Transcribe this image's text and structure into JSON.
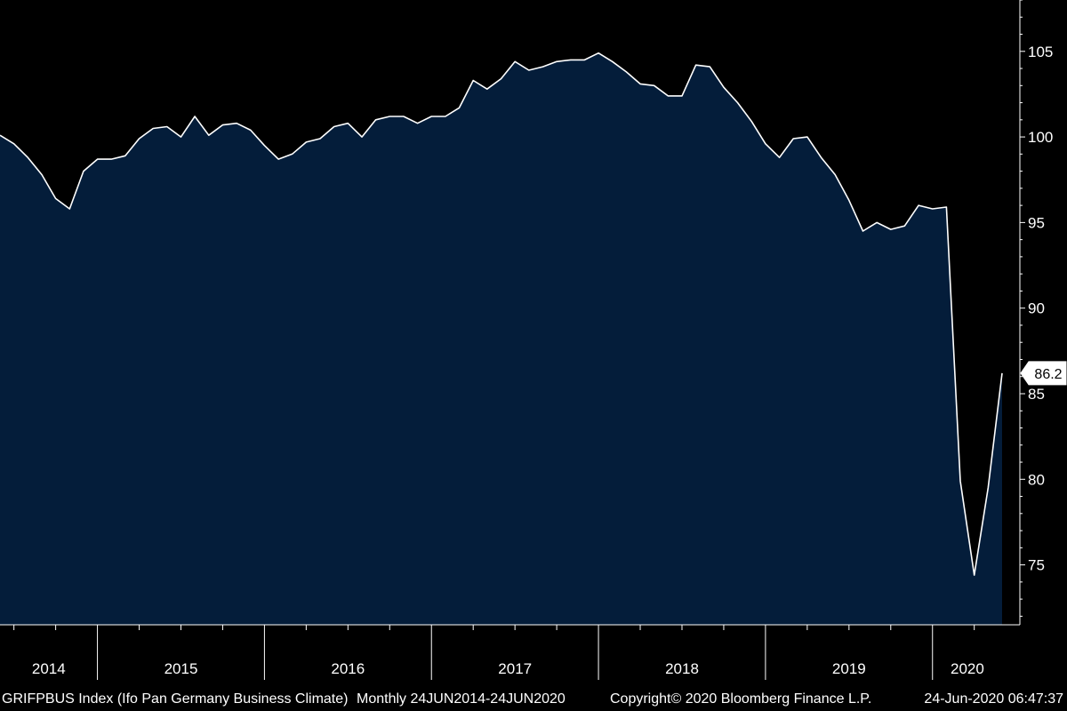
{
  "colors": {
    "background": "#000000",
    "area_fill": "#041d3a",
    "line": "#ffffff",
    "axis": "#ffffff"
  },
  "footer": {
    "ticker": "GRIFPBUS Index (Ifo Pan Germany Business Climate)",
    "period": "Monthly 24JUN2014-24JUN2020",
    "copyright": "Copyright© 2020 Bloomberg Finance L.P.",
    "timestamp": "24-Jun-2020 06:47:37"
  },
  "chart_data": {
    "type": "area",
    "title": "",
    "xlabel": "",
    "ylabel": "",
    "ylim": [
      71.5,
      108
    ],
    "y_ticks": [
      75,
      80,
      85,
      90,
      95,
      100,
      105
    ],
    "x_years": [
      "2014",
      "2015",
      "2016",
      "2017",
      "2018",
      "2019",
      "2020"
    ],
    "last_value_label": "86.2",
    "grid": false,
    "series": [
      {
        "x": [
          "2014-06",
          "2014-07",
          "2014-08",
          "2014-09",
          "2014-10",
          "2014-11",
          "2014-12",
          "2015-01",
          "2015-02",
          "2015-03",
          "2015-04",
          "2015-05",
          "2015-06",
          "2015-07",
          "2015-08",
          "2015-09",
          "2015-10",
          "2015-11",
          "2015-12",
          "2016-01",
          "2016-02",
          "2016-03",
          "2016-04",
          "2016-05",
          "2016-06",
          "2016-07",
          "2016-08",
          "2016-09",
          "2016-10",
          "2016-11",
          "2016-12",
          "2017-01",
          "2017-02",
          "2017-03",
          "2017-04",
          "2017-05",
          "2017-06",
          "2017-07",
          "2017-08",
          "2017-09",
          "2017-10",
          "2017-11",
          "2017-12",
          "2018-01",
          "2018-02",
          "2018-03",
          "2018-04",
          "2018-05",
          "2018-06",
          "2018-07",
          "2018-08",
          "2018-09",
          "2018-10",
          "2018-11",
          "2018-12",
          "2019-01",
          "2019-02",
          "2019-03",
          "2019-04",
          "2019-05",
          "2019-06",
          "2019-07",
          "2019-08",
          "2019-09",
          "2019-10",
          "2019-11",
          "2019-12",
          "2020-01",
          "2020-02",
          "2020-03",
          "2020-04",
          "2020-05",
          "2020-06"
        ],
        "values": [
          100.1,
          99.6,
          98.8,
          97.8,
          96.4,
          95.8,
          98.0,
          98.7,
          98.7,
          98.9,
          99.9,
          100.5,
          100.6,
          100.0,
          101.2,
          100.1,
          100.7,
          100.8,
          100.4,
          99.5,
          98.7,
          99.0,
          99.7,
          99.9,
          100.6,
          100.8,
          100.0,
          101.0,
          101.2,
          101.2,
          100.8,
          101.2,
          101.2,
          101.7,
          103.3,
          102.8,
          103.4,
          104.4,
          103.9,
          104.1,
          104.4,
          104.5,
          104.5,
          104.9,
          104.4,
          103.8,
          103.1,
          103.0,
          102.4,
          102.4,
          104.2,
          104.1,
          102.9,
          102.0,
          100.9,
          99.6,
          98.8,
          99.9,
          100.0,
          98.8,
          97.8,
          96.3,
          94.5,
          95.0,
          94.6,
          94.8,
          96.0,
          95.8,
          95.9,
          79.9,
          74.4,
          79.5,
          86.2
        ]
      }
    ]
  }
}
